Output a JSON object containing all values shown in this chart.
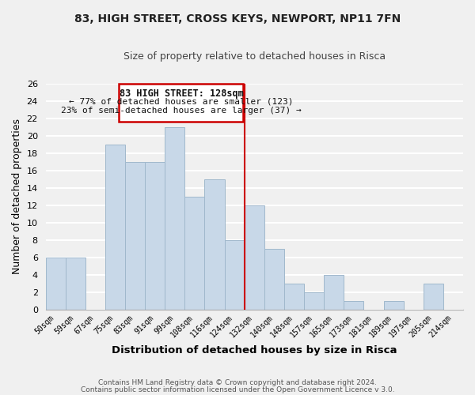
{
  "title": "83, HIGH STREET, CROSS KEYS, NEWPORT, NP11 7FN",
  "subtitle": "Size of property relative to detached houses in Risca",
  "xlabel": "Distribution of detached houses by size in Risca",
  "ylabel": "Number of detached properties",
  "bar_color": "#c8d8e8",
  "bar_edge_color": "#a0b8cc",
  "bin_labels": [
    "50sqm",
    "59sqm",
    "67sqm",
    "75sqm",
    "83sqm",
    "91sqm",
    "99sqm",
    "108sqm",
    "116sqm",
    "124sqm",
    "132sqm",
    "140sqm",
    "148sqm",
    "157sqm",
    "165sqm",
    "173sqm",
    "181sqm",
    "189sqm",
    "197sqm",
    "205sqm",
    "214sqm"
  ],
  "bar_heights": [
    6,
    6,
    0,
    19,
    17,
    17,
    21,
    13,
    15,
    8,
    12,
    7,
    3,
    2,
    4,
    1,
    0,
    1,
    0,
    3,
    0
  ],
  "annotation_title": "83 HIGH STREET: 128sqm",
  "annotation_line1": "← 77% of detached houses are smaller (123)",
  "annotation_line2": "23% of semi-detached houses are larger (37) →",
  "annotation_box_color": "#ffffff",
  "annotation_box_edge": "#cc0000",
  "vline_color": "#cc0000",
  "ylim": [
    0,
    26
  ],
  "yticks": [
    0,
    2,
    4,
    6,
    8,
    10,
    12,
    14,
    16,
    18,
    20,
    22,
    24,
    26
  ],
  "footer1": "Contains HM Land Registry data © Crown copyright and database right 2024.",
  "footer2": "Contains public sector information licensed under the Open Government Licence v 3.0.",
  "background_color": "#f0f0f0",
  "grid_color": "#ffffff"
}
